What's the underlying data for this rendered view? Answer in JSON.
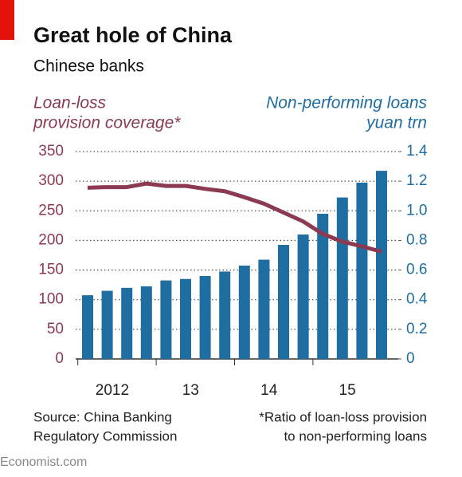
{
  "chart_data": {
    "type": "bar-line",
    "title": "Great hole of China",
    "subtitle": "Chinese banks",
    "y_label": [
      "Loan-loss",
      "provision coverage*"
    ],
    "y2_label": [
      "Non-performing loans",
      "yuan trn"
    ],
    "categories": [
      "2012",
      null,
      null,
      null,
      "13",
      null,
      null,
      null,
      "14",
      null,
      null,
      null,
      "15",
      null,
      null,
      null
    ],
    "ylim": [
      0,
      350
    ],
    "yticks": [
      0,
      50,
      100,
      150,
      200,
      250,
      300,
      350
    ],
    "y2lim": [
      0,
      1.4
    ],
    "y2ticks": [
      0,
      0.2,
      0.4,
      0.6,
      0.8,
      {
        "value": 1,
        "label": "1.0"
      },
      1.2,
      1.4
    ],
    "grid": true,
    "series": [
      {
        "name": "Non-performing loans",
        "type": "bar",
        "axis": "y2",
        "color": "#1f6ea1",
        "values": [
          0.43,
          0.46,
          0.48,
          0.49,
          0.53,
          0.54,
          0.56,
          0.59,
          0.63,
          0.67,
          0.77,
          0.84,
          0.98,
          1.09,
          1.19,
          1.27
        ]
      },
      {
        "name": "Loan-loss provision coverage",
        "type": "line",
        "axis": "y",
        "color": "#8b3a52",
        "values": [
          289,
          290,
          290,
          296,
          292,
          292,
          287,
          283,
          273,
          262,
          247,
          232,
          211,
          198,
          190,
          181
        ]
      }
    ],
    "source": [
      "Source: China Banking",
      "Regulatory Commission"
    ],
    "footnote": [
      "*Ratio of loan-loss provision",
      "to non-performing loans"
    ],
    "brand": "Economist.com"
  }
}
